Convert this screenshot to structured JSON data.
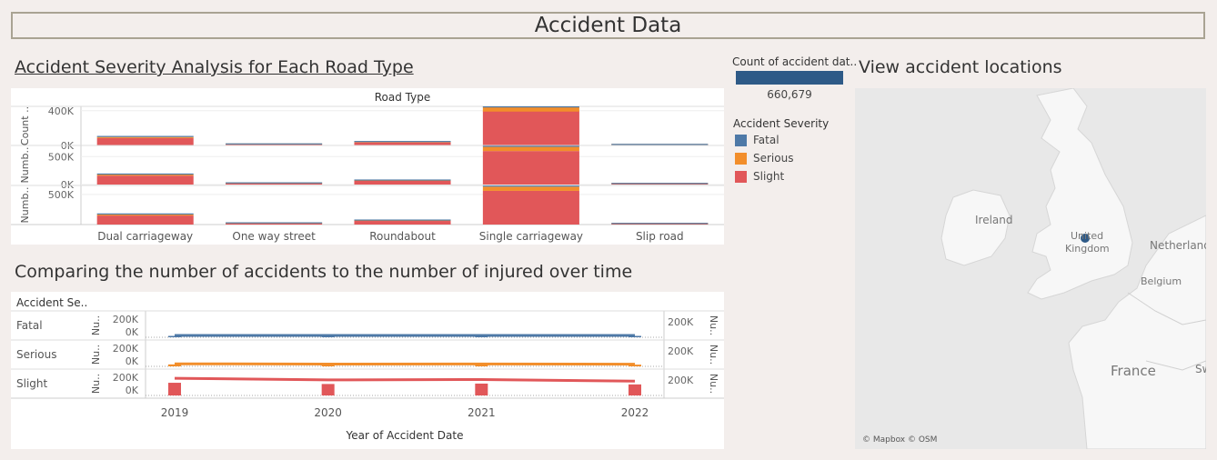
{
  "dashboard": {
    "title": "Accident Data",
    "sheet1_title": "Accident Severity Analysis for Each Road Type",
    "sheet2_title": "Comparing the number of accidents to the number of injured over time",
    "sheet3_title": "View accident locations"
  },
  "colors": {
    "Fatal": "#4e79a7",
    "Serious": "#f28e2b",
    "Slight": "#e15759",
    "count_bar": "#2e5a87"
  },
  "count_legend": {
    "title": "Count of accident dat..",
    "value": "660,679"
  },
  "severity_legend": {
    "title": "Accident Severity",
    "items": [
      "Fatal",
      "Serious",
      "Slight"
    ]
  },
  "map": {
    "labels": {
      "ireland": "Ireland",
      "uk1": "United",
      "uk2": "Kingdom",
      "netherlands": "Netherland",
      "belgium": "Belgium",
      "france": "France",
      "sw": "Sw"
    },
    "attribution": "© Mapbox © OSM"
  },
  "chart_data": [
    {
      "type": "bar",
      "stacked": true,
      "column_header": "Road Type",
      "categories": [
        "Dual carriageway",
        "One way street",
        "Roundabout",
        "Single carriageway",
        "Slip road"
      ],
      "rows": [
        {
          "ylabel": "Count ..",
          "ticks": [
            "400K",
            "0K"
          ],
          "ylim": [
            0,
            450000
          ],
          "series": [
            {
              "name": "Slight",
              "values": [
                85000,
                10000,
                35000,
                400000,
                5000
              ]
            },
            {
              "name": "Serious",
              "values": [
                12000,
                1500,
                4000,
                60000,
                800
              ]
            },
            {
              "name": "Fatal",
              "values": [
                1500,
                200,
                300,
                7000,
                100
              ]
            }
          ]
        },
        {
          "ylabel": "Numb..",
          "ticks": [
            "500K",
            "0K"
          ],
          "ylim": [
            0,
            700000
          ],
          "series": [
            {
              "name": "Slight",
              "values": [
                160000,
                18000,
                65000,
                600000,
                9000
              ]
            },
            {
              "name": "Serious",
              "values": [
                18000,
                2000,
                6000,
                75000,
                1000
              ]
            },
            {
              "name": "Fatal",
              "values": [
                2500,
                300,
                500,
                9000,
                150
              ]
            }
          ]
        },
        {
          "ylabel": "Numb..",
          "ticks": [
            "500K"
          ],
          "ylim": [
            0,
            650000
          ],
          "series": [
            {
              "name": "Slight",
              "values": [
                150000,
                17000,
                60000,
                560000,
                8500
              ]
            },
            {
              "name": "Serious",
              "values": [
                17000,
                1900,
                5500,
                70000,
                950
              ]
            },
            {
              "name": "Fatal",
              "values": [
                2300,
                280,
                450,
                8500,
                140
              ]
            }
          ]
        }
      ],
      "legend": "right"
    },
    {
      "type": "bar",
      "dual_axis": true,
      "row_header": "Accident Se..",
      "xlabel": "Year of Accident Date",
      "x": [
        "2019",
        "2020",
        "2021",
        "2022"
      ],
      "rows": [
        {
          "name": "Fatal",
          "ylabel": "Nu..",
          "ticks": [
            "200K",
            "0K"
          ],
          "right_tick": "200K",
          "right_label": "Nu..",
          "bars": [
            2300,
            2100,
            2200,
            2000
          ],
          "line": [
            2900,
            2700,
            2800,
            2600
          ],
          "ylim": [
            0,
            300000
          ]
        },
        {
          "name": "Serious",
          "ylabel": "Nu..",
          "ticks": [
            "200K",
            "0K"
          ],
          "right_tick": "200K",
          "right_label": "Nu..",
          "bars": [
            24000,
            22000,
            23000,
            21000
          ],
          "line": [
            31000,
            28000,
            29000,
            27000
          ],
          "ylim": [
            0,
            300000
          ]
        },
        {
          "name": "Slight",
          "ylabel": "Nu..",
          "ticks": [
            "200K",
            "0K"
          ],
          "right_tick": "200K",
          "right_label": "Nu..",
          "bars": [
            155000,
            140000,
            145000,
            135000
          ],
          "line": [
            210000,
            190000,
            195000,
            175000
          ],
          "ylim": [
            0,
            300000
          ]
        }
      ]
    }
  ]
}
